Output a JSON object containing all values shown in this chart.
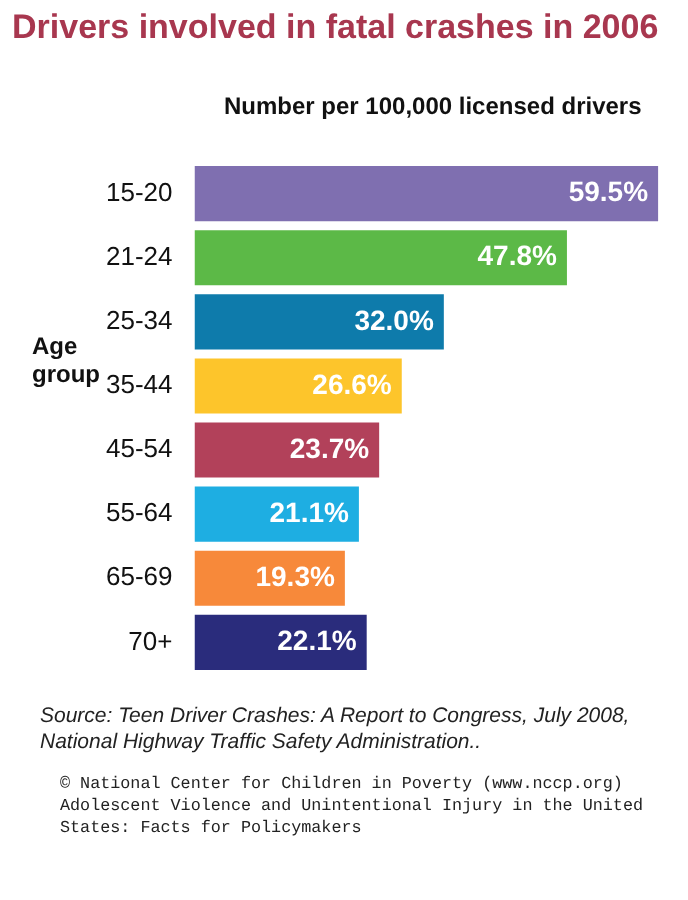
{
  "chart_data": {
    "type": "bar",
    "orientation": "horizontal",
    "title": "Drivers involved in fatal crashes in 2006",
    "subtitle": "Number per 100,000 licensed drivers",
    "ylabel": "Age group",
    "categories": [
      "15-20",
      "21-24",
      "25-34",
      "35-44",
      "45-54",
      "55-64",
      "65-69",
      "70+"
    ],
    "values": [
      59.5,
      47.8,
      32.0,
      26.6,
      23.7,
      21.1,
      19.3,
      22.1
    ],
    "value_labels": [
      "59.5%",
      "47.8%",
      "32.0%",
      "26.6%",
      "23.7%",
      "21.1%",
      "19.3%",
      "22.1%"
    ],
    "colors": [
      "#7f6fb0",
      "#5cb947",
      "#0e7bab",
      "#fdc52b",
      "#b2415a",
      "#1eaee2",
      "#f7893a",
      "#2a2c7c"
    ],
    "legend": false,
    "annotations": [
      "Source: Teen Driver Crashes: A Report to Congress, July 2008, National Highway Traffic Safety Administration..",
      "© National Center for Children in Poverty (www.nccp.org)\nAdolescent Violence and Unintentional Injury in the United States: Facts for Policymakers"
    ]
  }
}
